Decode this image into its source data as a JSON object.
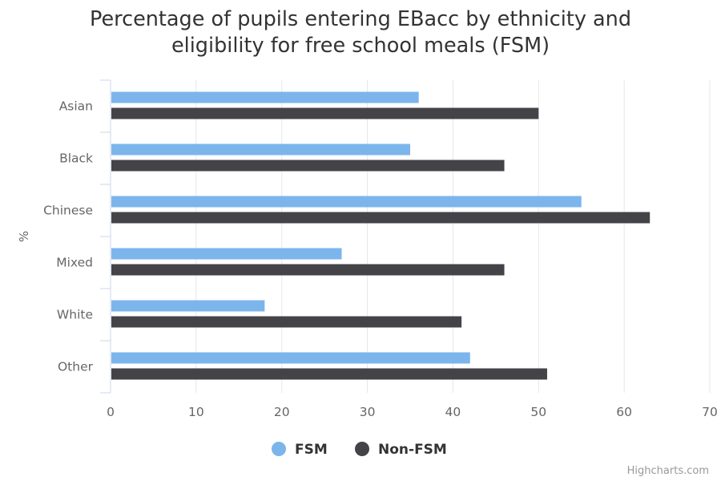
{
  "chart_data": {
    "type": "bar",
    "orientation": "horizontal",
    "title": "Percentage of pupils entering EBacc by ethnicity and eligibility for free school meals (FSM)",
    "xlabel": "",
    "ylabel": "%",
    "categories": [
      "Asian",
      "Black",
      "Chinese",
      "Mixed",
      "White",
      "Other"
    ],
    "series": [
      {
        "name": "FSM",
        "color": "#7cb5ec",
        "values": [
          36,
          35,
          55,
          27,
          18,
          42
        ]
      },
      {
        "name": "Non-FSM",
        "color": "#434348",
        "values": [
          50,
          46,
          63,
          46,
          41,
          51
        ]
      }
    ],
    "value_axis": {
      "min": 0,
      "max": 70,
      "ticks": [
        0,
        10,
        20,
        30,
        40,
        50,
        60,
        70
      ]
    },
    "grid": true,
    "legend_position": "bottom-center"
  },
  "credits": "Highcharts.com"
}
